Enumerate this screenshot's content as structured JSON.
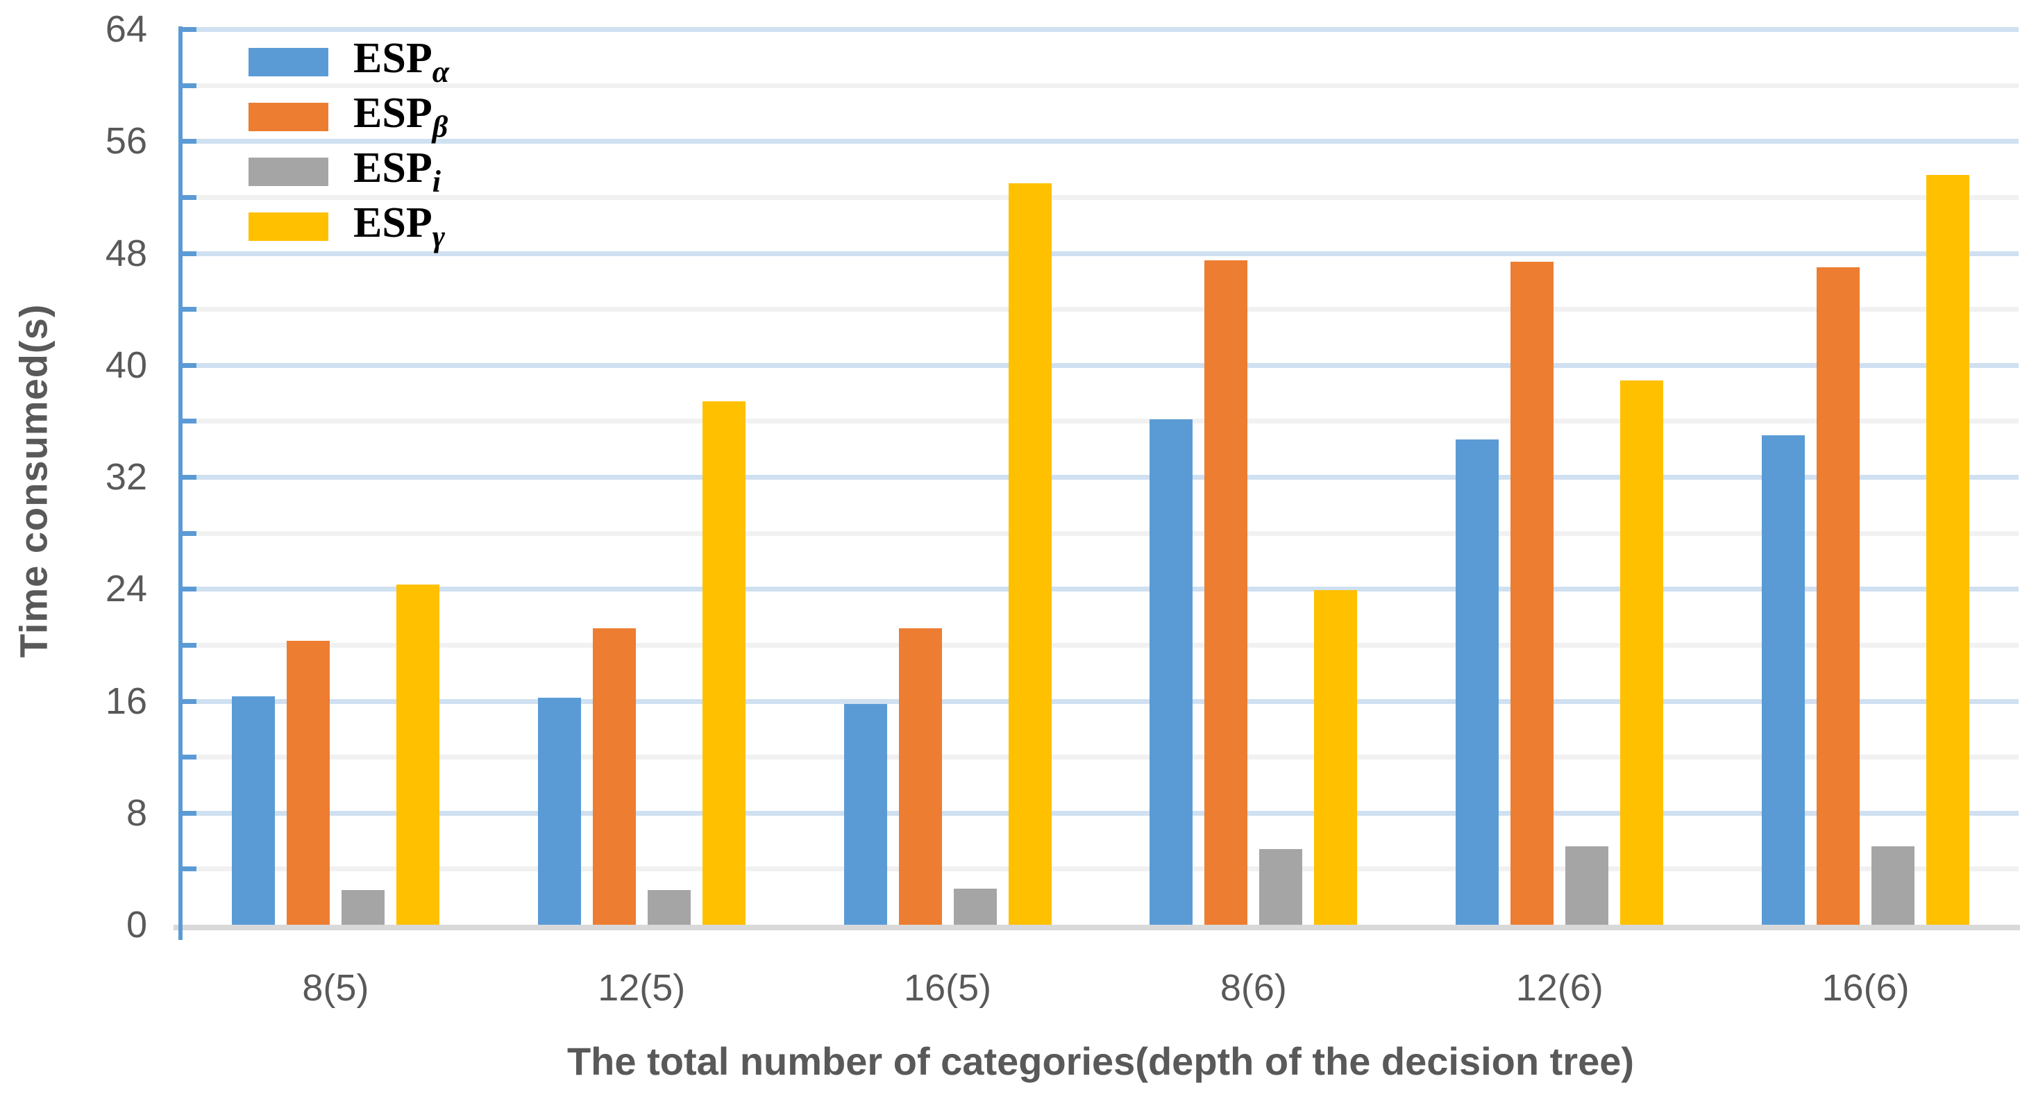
{
  "chart_data": {
    "type": "bar",
    "title": "",
    "xlabel": "The total number of categories(depth of the decision tree)",
    "ylabel": "Time consumed(s)",
    "categories": [
      "8(5)",
      "12(5)",
      "16(5)",
      "8(6)",
      "12(6)",
      "16(6)"
    ],
    "series": [
      {
        "name": "ESP_alpha",
        "label_main": "ESP",
        "label_sub": "α",
        "color": "#5B9BD5",
        "values": [
          16.3,
          16.2,
          15.8,
          36.1,
          34.7,
          35.0
        ]
      },
      {
        "name": "ESP_beta",
        "label_main": "ESP",
        "label_sub": "β",
        "color": "#ED7D31",
        "values": [
          20.3,
          21.2,
          21.2,
          47.5,
          47.4,
          47.0
        ]
      },
      {
        "name": "ESP_i",
        "label_main": "ESP",
        "label_sub": "i",
        "color": "#A5A5A5",
        "values": [
          2.5,
          2.5,
          2.6,
          5.4,
          5.6,
          5.6
        ]
      },
      {
        "name": "ESP_gamma",
        "label_main": "ESP",
        "label_sub": "γ",
        "color": "#FFC000",
        "values": [
          24.3,
          37.4,
          53.0,
          23.9,
          38.9,
          53.6
        ]
      }
    ],
    "ylim": [
      0,
      64
    ],
    "yticks": [
      0,
      8,
      16,
      24,
      32,
      40,
      48,
      56,
      64
    ],
    "ytick_step_major": 8,
    "ytick_step_minor": 4,
    "grid": "horizontal major (light blue) + minor (light gray)",
    "legend_position": "top-left inside plot"
  },
  "colors": {
    "axis_line": "#5B9BD5",
    "baseline": "#D9D9D9",
    "grid_major": "#CFE0F1",
    "grid_minor": "#F1F1F1",
    "tick_text": "#595959",
    "series_blue": "#5B9BD5",
    "series_orange": "#ED7D31",
    "series_gray": "#A5A5A5",
    "series_yellow": "#FFC000"
  }
}
